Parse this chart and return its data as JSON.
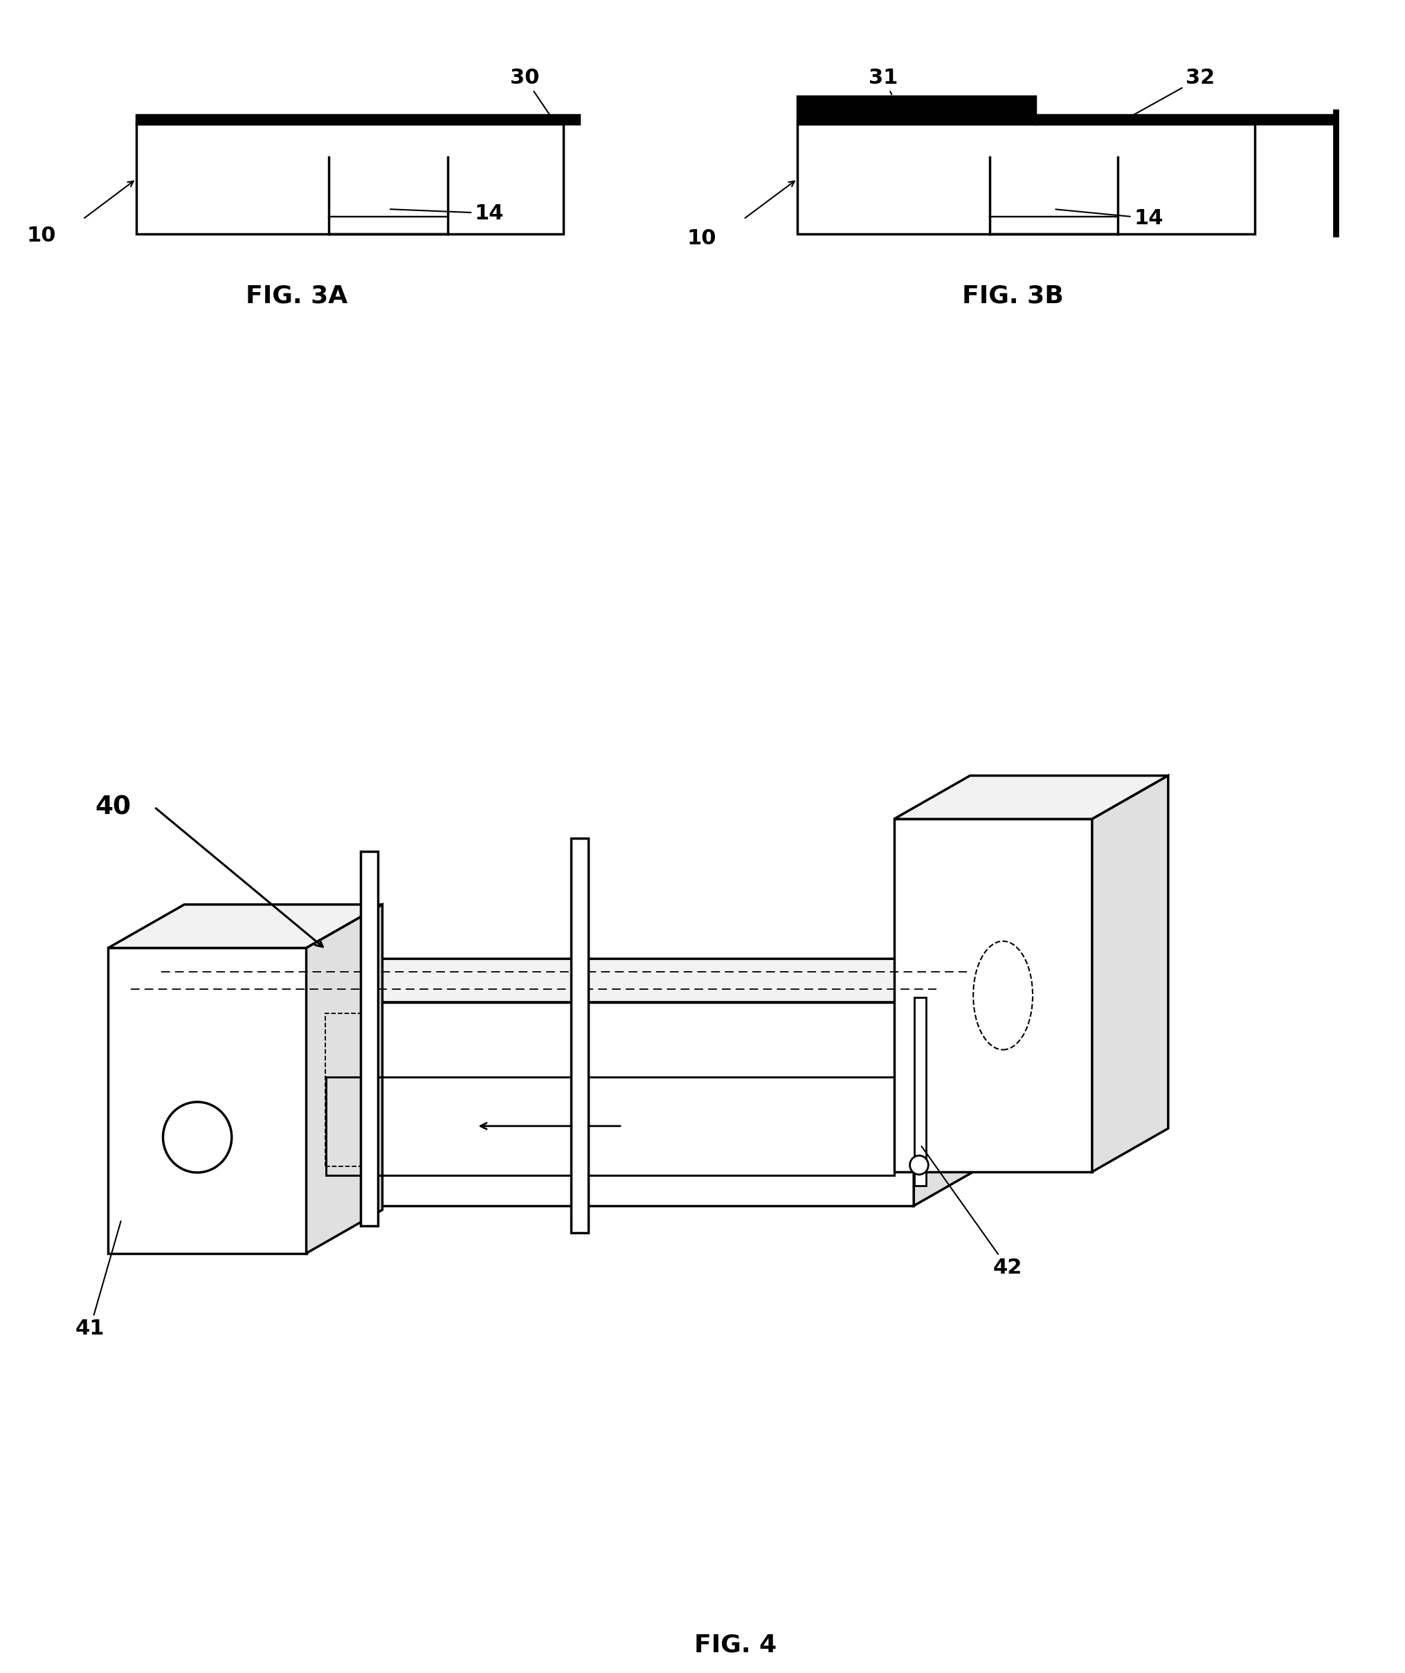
{
  "bg_color": "#ffffff",
  "lc": "#000000",
  "fig_width": 20.3,
  "fig_height": 24.17,
  "fig3a_label": "FIG. 3A",
  "fig3b_label": "FIG. 3B",
  "fig4_label": "FIG. 4",
  "caption_fs": 26,
  "callout_fs": 22,
  "lw": 2.5,
  "lw_thin": 1.5
}
